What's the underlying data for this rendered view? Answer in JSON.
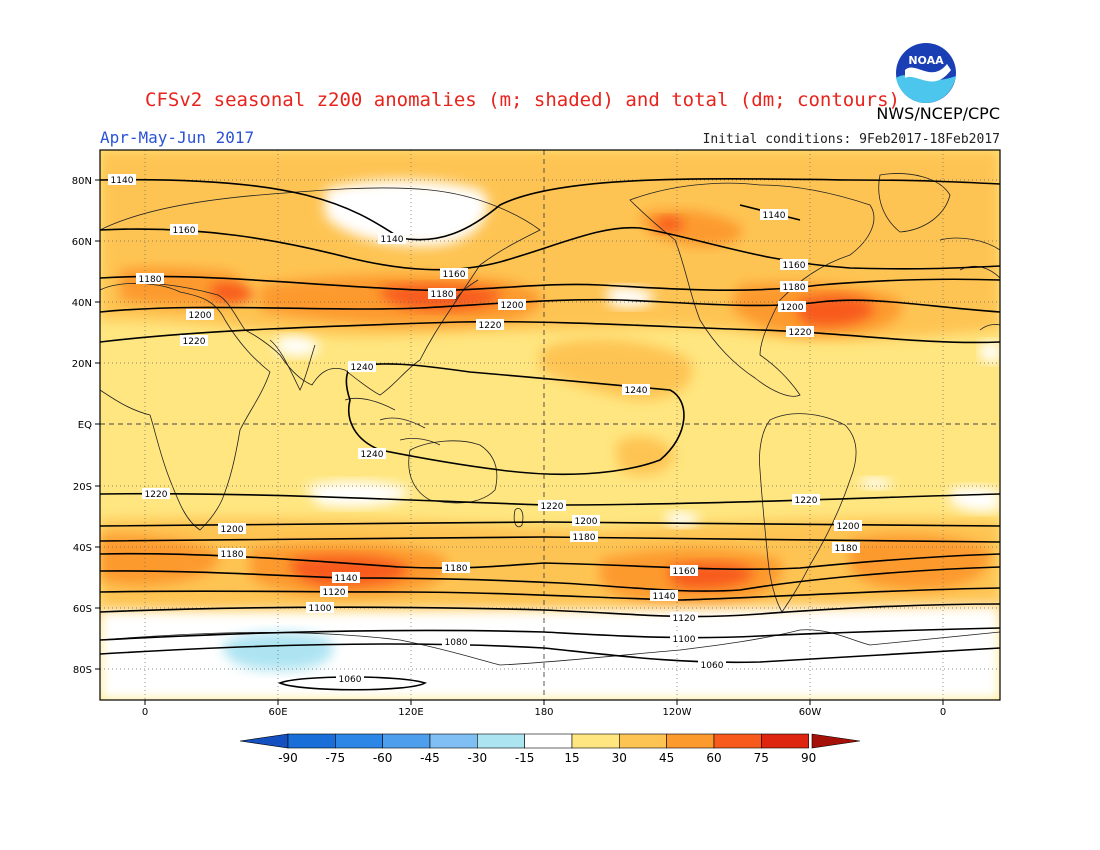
{
  "title": "CFSv2 seasonal z200 anomalies (m; shaded) and total (dm; contours)",
  "agency": "NWS/NCEP/CPC",
  "season": "Apr-May-Jun 2017",
  "initial_conditions": "Initial conditions: 9Feb2017-18Feb2017",
  "logo": {
    "icon": "noaa-logo-icon",
    "text": "NOAA"
  },
  "axes": {
    "lat_labels": [
      "80N",
      "60N",
      "40N",
      "20N",
      "EQ",
      "20S",
      "40S",
      "60S",
      "80S"
    ],
    "lon_labels": [
      "0",
      "60E",
      "120E",
      "180",
      "120W",
      "60W",
      "0"
    ]
  },
  "contours": [
    {
      "value": 1140,
      "label": "1140"
    },
    {
      "value": 1160,
      "label": "1160"
    },
    {
      "value": 1180,
      "label": "1180"
    },
    {
      "value": 1200,
      "label": "1200"
    },
    {
      "value": 1220,
      "label": "1220"
    },
    {
      "value": 1240,
      "label": "1240"
    },
    {
      "value": 1100,
      "label": "1100"
    },
    {
      "value": 1120,
      "label": "1120"
    },
    {
      "value": 1080,
      "label": "1080"
    },
    {
      "value": 1060,
      "label": "1060"
    }
  ],
  "colorbar": {
    "ticks": [
      "-90",
      "-75",
      "-60",
      "-45",
      "-30",
      "-15",
      "15",
      "30",
      "45",
      "60",
      "75",
      "90"
    ],
    "colors": [
      "#1a6ed8",
      "#2c86e6",
      "#4d9fee",
      "#7fbff4",
      "#ade4f2",
      "#ffffff",
      "#ffe680",
      "#fec453",
      "#fd9a2e",
      "#f85a1b",
      "#dd2510"
    ],
    "end_left": "#1550c0",
    "end_right": "#a51008"
  }
}
